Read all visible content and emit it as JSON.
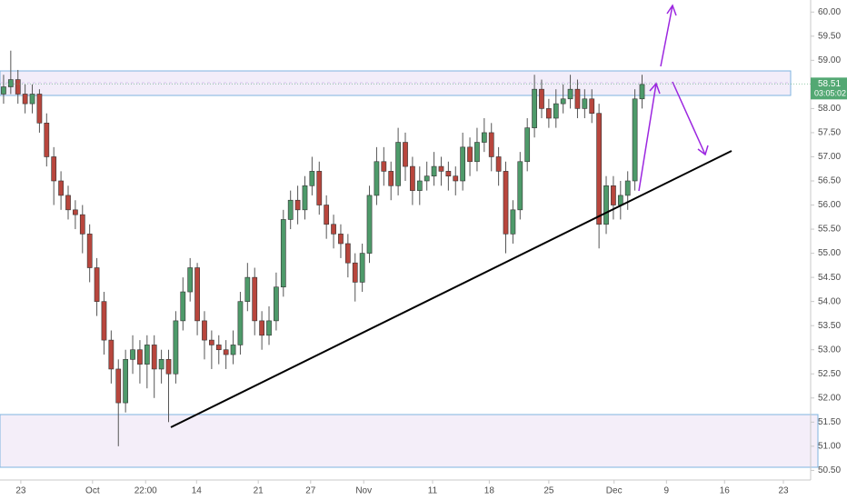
{
  "chart_data": {
    "type": "candlestick",
    "up_color": "#4e9a6a",
    "down_color": "#b8463d",
    "open": [
      58.3,
      58.45,
      58.6,
      58.3,
      58.1,
      58.3,
      57.7,
      57.0,
      56.5,
      56.2,
      55.9,
      55.8,
      55.4,
      54.7,
      54.0,
      53.2,
      52.6,
      51.9,
      52.8,
      53.0,
      52.7,
      53.1,
      52.6,
      52.8,
      52.5,
      53.6,
      54.2,
      54.7,
      53.6,
      53.2,
      53.1,
      53.0,
      52.9,
      53.1,
      54.0,
      54.5,
      53.6,
      53.3,
      53.6,
      54.3,
      55.7,
      56.1,
      55.9,
      56.4,
      56.7,
      56.0,
      55.6,
      55.4,
      55.2,
      54.8,
      54.4,
      55.0,
      56.2,
      56.9,
      56.7,
      56.4,
      57.3,
      56.8,
      56.3,
      56.5,
      56.6,
      56.8,
      56.7,
      56.6,
      56.5,
      57.2,
      56.9,
      57.3,
      57.5,
      57.0,
      56.7,
      55.4,
      55.9,
      56.9,
      57.6,
      58.4,
      58.0,
      57.8,
      58.1,
      58.2,
      58.4,
      58.0,
      58.2,
      57.9,
      55.6,
      56.4,
      56.0,
      56.2,
      56.5,
      58.2
    ],
    "high": [
      58.7,
      59.2,
      58.8,
      58.5,
      58.5,
      58.4,
      57.9,
      57.2,
      56.7,
      56.4,
      56.1,
      56.0,
      55.6,
      54.9,
      54.2,
      53.4,
      52.8,
      53.0,
      53.3,
      53.2,
      53.3,
      53.3,
      53.0,
      53.0,
      53.8,
      54.5,
      54.9,
      54.8,
      53.8,
      53.4,
      53.3,
      53.2,
      53.4,
      54.2,
      54.8,
      54.7,
      53.8,
      53.9,
      54.6,
      55.9,
      56.3,
      56.4,
      56.6,
      57.0,
      56.9,
      56.2,
      55.8,
      55.6,
      55.4,
      55.0,
      55.2,
      56.4,
      57.2,
      57.2,
      56.9,
      57.6,
      57.5,
      57.0,
      56.8,
      56.9,
      57.1,
      57.0,
      56.9,
      56.8,
      57.5,
      57.4,
      57.6,
      57.8,
      57.7,
      57.2,
      56.9,
      56.1,
      57.1,
      57.8,
      58.7,
      58.6,
      58.2,
      58.4,
      58.5,
      58.7,
      58.6,
      58.4,
      58.4,
      58.1,
      56.6,
      56.6,
      56.5,
      56.7,
      58.4,
      58.7
    ],
    "low": [
      58.1,
      58.3,
      58.1,
      57.9,
      57.9,
      57.5,
      56.8,
      56.0,
      55.9,
      55.7,
      55.5,
      55.0,
      54.4,
      53.7,
      52.9,
      52.3,
      51.0,
      51.7,
      52.5,
      52.3,
      52.2,
      52.0,
      52.3,
      51.5,
      52.3,
      53.4,
      54.0,
      53.3,
      52.8,
      52.6,
      52.7,
      52.6,
      52.7,
      52.9,
      53.8,
      53.3,
      53.0,
      53.1,
      53.4,
      54.1,
      55.5,
      55.6,
      55.7,
      56.2,
      55.8,
      55.3,
      55.1,
      54.9,
      54.5,
      54.0,
      54.2,
      54.8,
      56.0,
      56.4,
      56.1,
      56.2,
      56.5,
      56.0,
      56.0,
      56.3,
      56.4,
      56.4,
      56.3,
      56.2,
      56.3,
      56.6,
      56.7,
      57.1,
      56.7,
      56.4,
      55.0,
      55.2,
      55.7,
      56.7,
      57.4,
      57.8,
      57.6,
      57.6,
      57.9,
      58.0,
      57.8,
      57.8,
      57.7,
      55.1,
      55.4,
      55.7,
      55.7,
      55.9,
      56.3,
      58.0
    ],
    "close": [
      58.45,
      58.6,
      58.3,
      58.1,
      58.3,
      57.7,
      57.0,
      56.5,
      56.2,
      55.9,
      55.8,
      55.4,
      54.7,
      54.0,
      53.2,
      52.6,
      51.9,
      52.8,
      53.0,
      52.7,
      53.1,
      52.6,
      52.8,
      52.5,
      53.6,
      54.2,
      54.7,
      53.6,
      53.2,
      53.1,
      53.0,
      52.9,
      53.1,
      54.0,
      54.5,
      53.6,
      53.3,
      53.6,
      54.3,
      55.7,
      56.1,
      55.9,
      56.4,
      56.7,
      56.0,
      55.6,
      55.4,
      55.2,
      54.8,
      54.4,
      55.0,
      56.2,
      56.9,
      56.7,
      56.4,
      57.3,
      56.8,
      56.3,
      56.5,
      56.6,
      56.8,
      56.7,
      56.6,
      56.5,
      57.2,
      56.9,
      57.3,
      57.5,
      57.0,
      56.7,
      55.4,
      55.9,
      56.9,
      57.6,
      58.4,
      58.0,
      57.8,
      58.1,
      58.2,
      58.4,
      58.0,
      58.2,
      57.9,
      55.6,
      56.4,
      56.0,
      56.2,
      56.5,
      58.2,
      58.5
    ],
    "xlim": [
      -0.5,
      112.5
    ],
    "xticks": [
      {
        "value": 2.4,
        "label": "23"
      },
      {
        "value": 12.4,
        "label": "Oct"
      },
      {
        "value": 19.8,
        "label": "22:00"
      },
      {
        "value": 26.9,
        "label": "14"
      },
      {
        "value": 35.5,
        "label": "21"
      },
      {
        "value": 42.8,
        "label": "27"
      },
      {
        "value": 50.2,
        "label": "Nov"
      },
      {
        "value": 59.8,
        "label": "11"
      },
      {
        "value": 67.7,
        "label": "18"
      },
      {
        "value": 76.0,
        "label": "25"
      },
      {
        "value": 85.1,
        "label": "Dec"
      },
      {
        "value": 92.4,
        "label": "9"
      },
      {
        "value": 100.5,
        "label": "16"
      },
      {
        "value": 108.7,
        "label": "23"
      }
    ],
    "ylim": [
      50.3,
      60.25
    ],
    "yticks": [
      {
        "value": 50.5,
        "label": "50.50"
      },
      {
        "value": 51,
        "label": "51.00"
      },
      {
        "value": 51.5,
        "label": "51.50"
      },
      {
        "value": 52,
        "label": "52.00"
      },
      {
        "value": 52.5,
        "label": "52.50"
      },
      {
        "value": 53,
        "label": "53.00"
      },
      {
        "value": 53.5,
        "label": "53.50"
      },
      {
        "value": 54,
        "label": "54.00"
      },
      {
        "value": 54.5,
        "label": "54.50"
      },
      {
        "value": 55,
        "label": "55.00"
      },
      {
        "value": 55.5,
        "label": "55.50"
      },
      {
        "value": 56,
        "label": "56.00"
      },
      {
        "value": 56.5,
        "label": "56.50"
      },
      {
        "value": 57,
        "label": "57.00"
      },
      {
        "value": 57.5,
        "label": "57.50"
      },
      {
        "value": 58,
        "label": "58.00"
      },
      {
        "value": 58.5,
        "label": "58.50"
      },
      {
        "value": 59,
        "label": "59.00"
      },
      {
        "value": 59.5,
        "label": "59.50"
      },
      {
        "value": 60,
        "label": "60.00"
      }
    ],
    "grid": false,
    "last_price": 58.51,
    "last_price_color": "#53a873",
    "countdown": "03:05:02"
  }
}
